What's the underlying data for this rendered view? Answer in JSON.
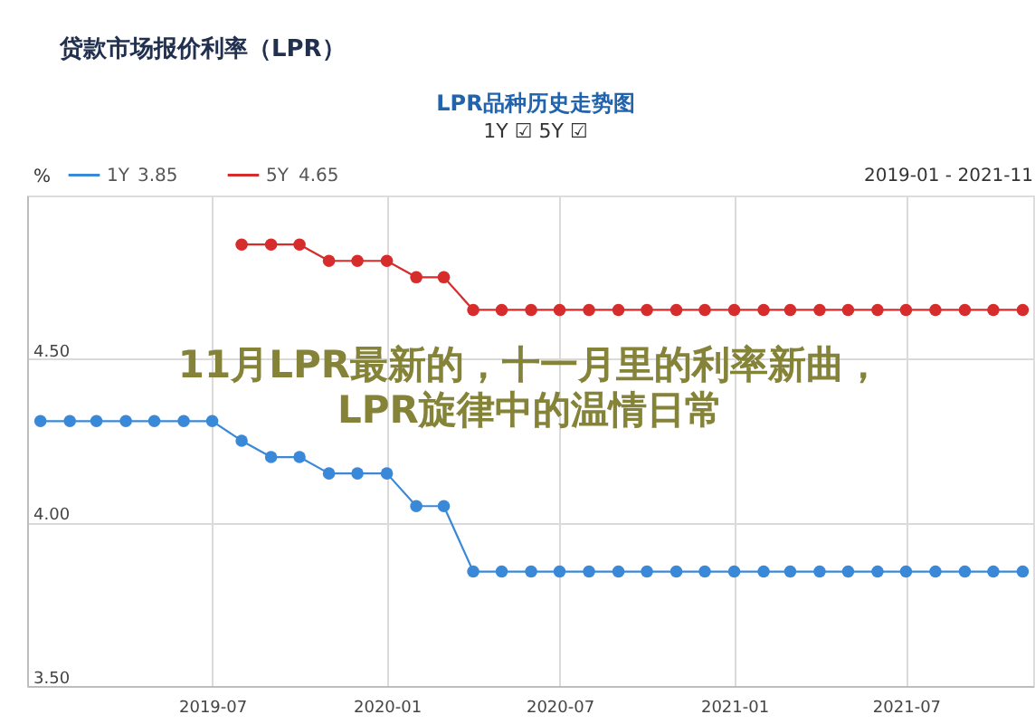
{
  "chart_data": {
    "type": "line",
    "title": "11月LPR最新的，十一月里的利率新曲，LPR旋律中的温情日常",
    "subtitle": "LPR品种历史走势图",
    "ylabel": "%",
    "annotations": [
      "贷款市场报价利率（LPR）",
      "1Y ☑ 5Y ☑",
      "3.85",
      "4.65",
      "2019-01 - 2021-11"
    ],
    "series": [
      {
        "name": "1Y",
        "color": "#3a89d9",
        "x": [
          "2019-01",
          "2019-02",
          "2019-03",
          "2019-04",
          "2019-05",
          "2019-06",
          "2019-07",
          "2019-08",
          "2019-09",
          "2019-10",
          "2019-11",
          "2019-12",
          "2020-01",
          "2020-02",
          "2020-03",
          "2020-04",
          "2020-05",
          "2020-06",
          "2020-07",
          "2020-08",
          "2020-09",
          "2020-10",
          "2020-11",
          "2020-12",
          "2021-01",
          "2021-02",
          "2021-03",
          "2021-04",
          "2021-05",
          "2021-06",
          "2021-07",
          "2021-08",
          "2021-09",
          "2021-10",
          "2021-11"
        ],
        "values": [
          4.31,
          4.31,
          4.31,
          4.31,
          4.31,
          4.31,
          4.31,
          4.25,
          4.2,
          4.2,
          4.15,
          4.15,
          4.15,
          4.05,
          4.05,
          3.85,
          3.85,
          3.85,
          3.85,
          3.85,
          3.85,
          3.85,
          3.85,
          3.85,
          3.85,
          3.85,
          3.85,
          3.85,
          3.85,
          3.85,
          3.85,
          3.85,
          3.85,
          3.85,
          3.85
        ]
      },
      {
        "name": "5Y",
        "color": "#d62c2c",
        "x": [
          "2019-08",
          "2019-09",
          "2019-10",
          "2019-11",
          "2019-12",
          "2020-01",
          "2020-02",
          "2020-03",
          "2020-04",
          "2020-05",
          "2020-06",
          "2020-07",
          "2020-08",
          "2020-09",
          "2020-10",
          "2020-11",
          "2020-12",
          "2021-01",
          "2021-02",
          "2021-03",
          "2021-04",
          "2021-05",
          "2021-06",
          "2021-07",
          "2021-08",
          "2021-09",
          "2021-10",
          "2021-11"
        ],
        "values": [
          4.85,
          4.85,
          4.85,
          4.8,
          4.8,
          4.8,
          4.75,
          4.75,
          4.65,
          4.65,
          4.65,
          4.65,
          4.65,
          4.65,
          4.65,
          4.65,
          4.65,
          4.65,
          4.65,
          4.65,
          4.65,
          4.65,
          4.65,
          4.65,
          4.65,
          4.65,
          4.65,
          4.65
        ]
      }
    ],
    "xlim": [
      "2018-12-18",
      "2021-11-12"
    ],
    "xticks": [
      "2019-07",
      "2020-01",
      "2020-07",
      "2021-01",
      "2021-07"
    ],
    "ylim": [
      3.5,
      5.0
    ],
    "yticks": [
      {
        "value": 3.5,
        "label": "3.50"
      },
      {
        "value": 4.0,
        "label": "4.00"
      },
      {
        "value": 4.5,
        "label": "4.50"
      }
    ],
    "grid": true,
    "legend": "top left",
    "marker": "circle",
    "line_style": "solid"
  }
}
